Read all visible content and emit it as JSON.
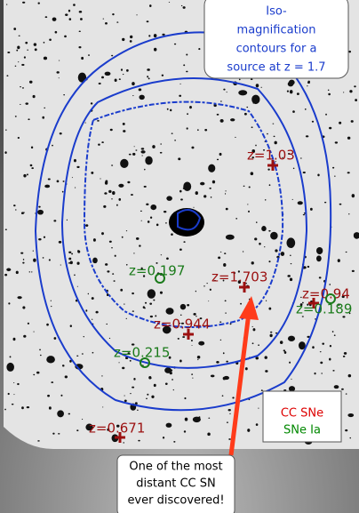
{
  "callout_top": {
    "lines": [
      "Iso-",
      "magnification",
      "contours for a",
      "source at z = 1.7"
    ]
  },
  "supernovae": [
    {
      "label": "z=1.03",
      "kind": "CC"
    },
    {
      "label": "z=0.197",
      "kind": "Ia"
    },
    {
      "label": "z=1.703",
      "kind": "CC"
    },
    {
      "label": "z=0.94",
      "kind": "CC"
    },
    {
      "label": "z=0.189",
      "kind": "Ia"
    },
    {
      "label": "z=0.944",
      "kind": "CC"
    },
    {
      "label": "z=0.215",
      "kind": "Ia"
    },
    {
      "label": "z=0.671",
      "kind": "CC"
    }
  ],
  "legend": {
    "cc": "CC SNe",
    "ia": "SNe Ia"
  },
  "callout_bottom": {
    "lines": [
      "One of the most",
      "distant CC SN",
      "ever discovered!"
    ]
  }
}
